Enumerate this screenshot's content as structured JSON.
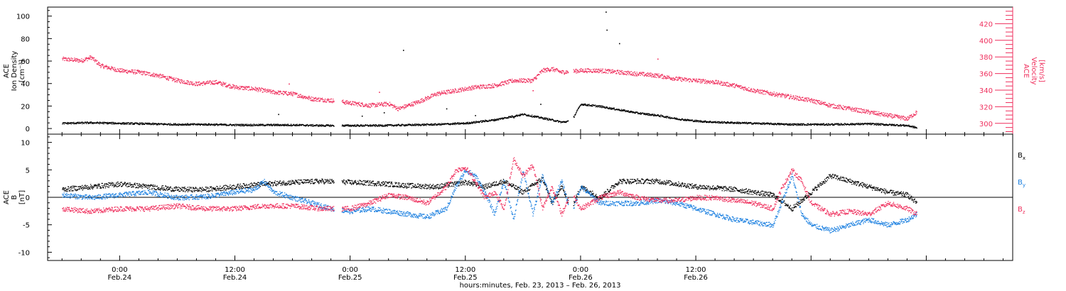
{
  "colors": {
    "black": "#000000",
    "red": "#ef2f5d",
    "blue": "#1a7fe0"
  },
  "chart_data": [
    {
      "type": "scatter",
      "panel": "top",
      "left_axis": {
        "label_lines": [
          "ACE",
          "Ion Density",
          "[cm⁻³]"
        ],
        "ticks": [
          0,
          20,
          40,
          60,
          80,
          100
        ],
        "range": [
          -5,
          108
        ]
      },
      "right_axis": {
        "label_lines": [
          "ACE",
          "Velocity",
          "[km/s]"
        ],
        "ticks": [
          300,
          320,
          340,
          360,
          380,
          400,
          420
        ],
        "range": [
          287,
          440
        ]
      },
      "series": [
        {
          "quantity": "Ion Density",
          "axis": "left",
          "color": "#000000",
          "points": [
            [
              -6,
              5
            ],
            [
              -3,
              5.5
            ],
            [
              0,
              5
            ],
            [
              3,
              4.5
            ],
            [
              6,
              4
            ],
            [
              9,
              4
            ],
            [
              12,
              3.5
            ],
            [
              15,
              3.5
            ],
            [
              18,
              3.5
            ],
            [
              21,
              3
            ],
            [
              24,
              3
            ],
            [
              27,
              3
            ],
            [
              30,
              3.5
            ],
            [
              33,
              4
            ],
            [
              36,
              5
            ],
            [
              39,
              8
            ],
            [
              42,
              13
            ],
            [
              45,
              8
            ],
            [
              46,
              6
            ],
            [
              47,
              7
            ],
            [
              48,
              22
            ],
            [
              50,
              20
            ],
            [
              52,
              17
            ],
            [
              54,
              14
            ],
            [
              56,
              12
            ],
            [
              58,
              9
            ],
            [
              60,
              7
            ],
            [
              62,
              6
            ],
            [
              66,
              5
            ],
            [
              70,
              4
            ],
            [
              74,
              4
            ],
            [
              78,
              4.5
            ],
            [
              82,
              3
            ],
            [
              83,
              1
            ]
          ],
          "isolated_points": [
            [
              16.5,
              13
            ],
            [
              25.2,
              11.5
            ],
            [
              27.5,
              14.5
            ],
            [
              29.5,
              70
            ],
            [
              34,
              18
            ],
            [
              37,
              12
            ],
            [
              50.6,
              104
            ],
            [
              50.7,
              88
            ],
            [
              52,
              76
            ],
            [
              43.8,
              22
            ],
            [
              41,
              10
            ]
          ]
        },
        {
          "quantity": "Velocity",
          "axis": "right",
          "color": "#ef2f5d",
          "points": [
            [
              -6,
              378
            ],
            [
              -4,
              376
            ],
            [
              -3,
              380
            ],
            [
              -2,
              370
            ],
            [
              0,
              364
            ],
            [
              2,
              362
            ],
            [
              4,
              358
            ],
            [
              6,
              352
            ],
            [
              8,
              348
            ],
            [
              10,
              350
            ],
            [
              12,
              344
            ],
            [
              14,
              342
            ],
            [
              16,
              338
            ],
            [
              18,
              336
            ],
            [
              20,
              330
            ],
            [
              22,
              328
            ],
            [
              24,
              325
            ],
            [
              26,
              322
            ],
            [
              28,
              324
            ],
            [
              29,
              318
            ],
            [
              31,
              326
            ],
            [
              33,
              336
            ],
            [
              35,
              340
            ],
            [
              37,
              344
            ],
            [
              39,
              346
            ],
            [
              41,
              352
            ],
            [
              43,
              352
            ],
            [
              44,
              364
            ],
            [
              45,
              366
            ],
            [
              46,
              362
            ],
            [
              48,
              364
            ],
            [
              50,
              364
            ],
            [
              52,
              362
            ],
            [
              54,
              360
            ],
            [
              56,
              358
            ],
            [
              58,
              354
            ],
            [
              60,
              352
            ],
            [
              62,
              350
            ],
            [
              64,
              346
            ],
            [
              66,
              340
            ],
            [
              68,
              336
            ],
            [
              70,
              332
            ],
            [
              72,
              328
            ],
            [
              74,
              322
            ],
            [
              76,
              318
            ],
            [
              78,
              314
            ],
            [
              80,
              310
            ],
            [
              82,
              306
            ],
            [
              83,
              314
            ]
          ],
          "isolated_points": [
            [
              27,
              338
            ],
            [
              17.6,
              348
            ],
            [
              43,
              340
            ],
            [
              56,
              378
            ]
          ]
        }
      ]
    },
    {
      "type": "scatter",
      "panel": "bottom",
      "left_axis": {
        "label_lines": [
          "ACE",
          "B",
          "[nT]"
        ],
        "ticks": [
          -10,
          -5,
          0,
          5,
          10
        ],
        "range": [
          -11.5,
          11.5
        ]
      },
      "reference_line": 0,
      "legend_position": "right",
      "series": [
        {
          "name": "Bx",
          "color": "#000000",
          "points": [
            [
              -6,
              1.5
            ],
            [
              -3,
              2
            ],
            [
              0,
              2.5
            ],
            [
              3,
              2
            ],
            [
              6,
              1.5
            ],
            [
              9,
              1.5
            ],
            [
              12,
              2
            ],
            [
              15,
              2.5
            ],
            [
              18,
              2.8
            ],
            [
              21,
              3
            ],
            [
              24,
              2.8
            ],
            [
              27,
              2.6
            ],
            [
              30,
              2.2
            ],
            [
              33,
              2
            ],
            [
              36,
              2.8
            ],
            [
              38,
              2
            ],
            [
              40,
              3
            ],
            [
              42,
              1
            ],
            [
              44,
              3.5
            ],
            [
              45,
              -1
            ],
            [
              46,
              2
            ],
            [
              47,
              -2
            ],
            [
              48,
              2
            ],
            [
              50,
              0
            ],
            [
              52,
              3
            ],
            [
              54,
              3
            ],
            [
              56,
              3
            ],
            [
              58,
              2.5
            ],
            [
              60,
              2
            ],
            [
              62,
              1.8
            ],
            [
              64,
              1.5
            ],
            [
              66,
              1
            ],
            [
              68,
              0.5
            ],
            [
              70,
              -2
            ],
            [
              72,
              1
            ],
            [
              74,
              4
            ],
            [
              76,
              3
            ],
            [
              78,
              2
            ],
            [
              80,
              1
            ],
            [
              82,
              0.5
            ],
            [
              83,
              -1
            ]
          ]
        },
        {
          "name": "By",
          "color": "#1a7fe0",
          "points": [
            [
              -6,
              0.5
            ],
            [
              -3,
              0
            ],
            [
              0,
              0.5
            ],
            [
              3,
              1
            ],
            [
              6,
              0
            ],
            [
              9,
              0.2
            ],
            [
              12,
              1
            ],
            [
              14,
              1.5
            ],
            [
              15,
              3
            ],
            [
              16,
              1
            ],
            [
              18,
              0
            ],
            [
              20,
              -1
            ],
            [
              22,
              -2
            ],
            [
              24,
              -2.5
            ],
            [
              26,
              -2
            ],
            [
              28,
              -2.5
            ],
            [
              30,
              -3
            ],
            [
              32,
              -3.5
            ],
            [
              34,
              -2
            ],
            [
              35,
              2
            ],
            [
              36,
              5
            ],
            [
              37,
              4
            ],
            [
              38,
              1
            ],
            [
              39,
              -3
            ],
            [
              40,
              3
            ],
            [
              41,
              -4
            ],
            [
              42,
              5
            ],
            [
              43,
              -3
            ],
            [
              44,
              4
            ],
            [
              45,
              -1
            ],
            [
              46,
              3
            ],
            [
              47,
              -3
            ],
            [
              48,
              2
            ],
            [
              50,
              -1
            ],
            [
              52,
              -1
            ],
            [
              54,
              -1
            ],
            [
              56,
              -0.5
            ],
            [
              58,
              -1
            ],
            [
              60,
              -2
            ],
            [
              62,
              -3
            ],
            [
              64,
              -4
            ],
            [
              66,
              -4.5
            ],
            [
              68,
              -5
            ],
            [
              70,
              4
            ],
            [
              71,
              -3
            ],
            [
              72,
              -5
            ],
            [
              74,
              -6
            ],
            [
              76,
              -5
            ],
            [
              78,
              -4
            ],
            [
              80,
              -5
            ],
            [
              82,
              -4
            ],
            [
              83,
              -3
            ]
          ]
        },
        {
          "name": "Bz",
          "color": "#ef2f5d",
          "points": [
            [
              -6,
              -2
            ],
            [
              -3,
              -2.5
            ],
            [
              0,
              -2
            ],
            [
              3,
              -2
            ],
            [
              6,
              -1.5
            ],
            [
              9,
              -2
            ],
            [
              12,
              -2
            ],
            [
              15,
              -1.5
            ],
            [
              18,
              -1.5
            ],
            [
              21,
              -2
            ],
            [
              24,
              -2
            ],
            [
              26,
              -1
            ],
            [
              28,
              0.5
            ],
            [
              30,
              0
            ],
            [
              32,
              -1
            ],
            [
              34,
              2
            ],
            [
              35,
              5
            ],
            [
              36,
              5.5
            ],
            [
              37,
              3
            ],
            [
              38,
              0
            ],
            [
              39,
              1
            ],
            [
              40,
              -2
            ],
            [
              41,
              7
            ],
            [
              42,
              4
            ],
            [
              43,
              6
            ],
            [
              44,
              -2
            ],
            [
              45,
              2
            ],
            [
              46,
              -3
            ],
            [
              47,
              1
            ],
            [
              48,
              -2
            ],
            [
              50,
              0
            ],
            [
              52,
              1
            ],
            [
              54,
              0
            ],
            [
              56,
              -0.5
            ],
            [
              58,
              -0.5
            ],
            [
              60,
              0
            ],
            [
              62,
              0
            ],
            [
              64,
              -0.5
            ],
            [
              66,
              -1
            ],
            [
              68,
              -2
            ],
            [
              69,
              2
            ],
            [
              70,
              5
            ],
            [
              71,
              3
            ],
            [
              72,
              -1
            ],
            [
              74,
              -3
            ],
            [
              76,
              -2.5
            ],
            [
              78,
              -3
            ],
            [
              80,
              -1
            ],
            [
              82,
              -2
            ],
            [
              83,
              -3
            ]
          ]
        }
      ],
      "legend": [
        "Bx",
        "By",
        "Bz"
      ]
    }
  ],
  "time_axis": {
    "range_hours": [
      -7.5,
      93
    ],
    "reference": "hours from 00:00 Feb. 24, 2013",
    "ticks": [
      {
        "at": 0,
        "time": "0:00",
        "date": "Feb.24"
      },
      {
        "at": 12,
        "time": "12:00",
        "date": "Feb.24"
      },
      {
        "at": 24,
        "time": "0:00",
        "date": "Feb.25"
      },
      {
        "at": 36,
        "time": "12:00",
        "date": "Feb.25"
      },
      {
        "at": 48,
        "time": "0:00",
        "date": "Feb.26"
      },
      {
        "at": 60,
        "time": "12:00",
        "date": "Feb.26"
      }
    ],
    "label": "hours:minutes, Feb. 23, 2013 – Feb. 26, 2013"
  }
}
